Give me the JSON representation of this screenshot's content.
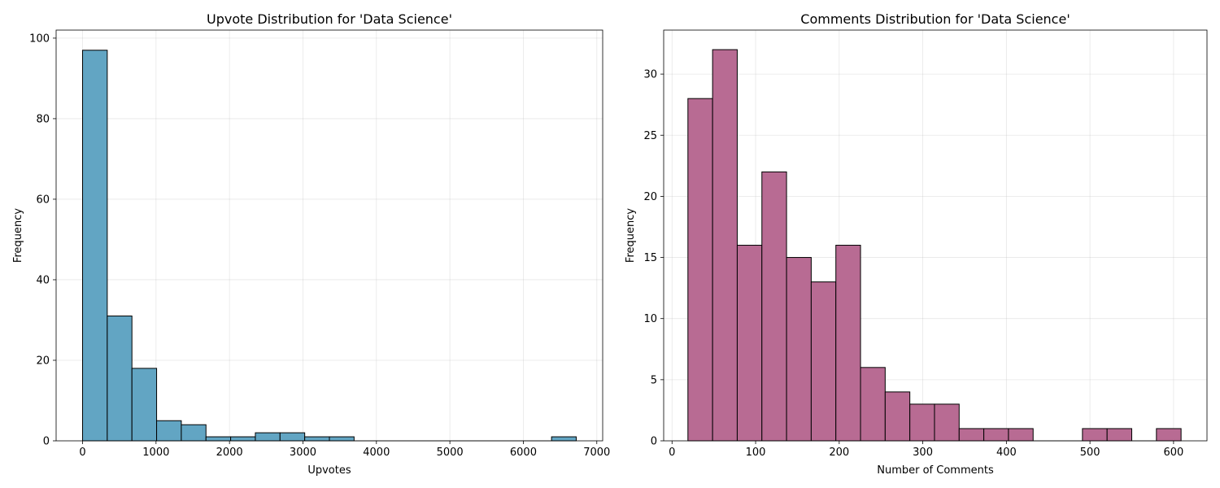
{
  "chart_data": [
    {
      "type": "bar",
      "title": "Upvote Distribution for 'Data Science'",
      "xlabel": "Upvotes",
      "ylabel": "Frequency",
      "xlim": [
        -360,
        7080
      ],
      "ylim": [
        0,
        102
      ],
      "xticks": [
        0,
        1000,
        2000,
        3000,
        4000,
        5000,
        6000,
        7000
      ],
      "yticks": [
        0,
        20,
        40,
        60,
        80,
        100
      ],
      "grid": true,
      "color": "#62A5C3",
      "bins": [
        {
          "x0": 0,
          "x1": 336,
          "count": 97
        },
        {
          "x0": 336,
          "x1": 672,
          "count": 31
        },
        {
          "x0": 672,
          "x1": 1008,
          "count": 18
        },
        {
          "x0": 1008,
          "x1": 1344,
          "count": 5
        },
        {
          "x0": 1344,
          "x1": 1680,
          "count": 4
        },
        {
          "x0": 1680,
          "x1": 2016,
          "count": 1
        },
        {
          "x0": 2016,
          "x1": 2352,
          "count": 1
        },
        {
          "x0": 2352,
          "x1": 2688,
          "count": 2
        },
        {
          "x0": 2688,
          "x1": 3024,
          "count": 2
        },
        {
          "x0": 3024,
          "x1": 3360,
          "count": 1
        },
        {
          "x0": 3360,
          "x1": 3696,
          "count": 1
        },
        {
          "x0": 3696,
          "x1": 4032,
          "count": 0
        },
        {
          "x0": 4032,
          "x1": 4368,
          "count": 0
        },
        {
          "x0": 4368,
          "x1": 4704,
          "count": 0
        },
        {
          "x0": 4704,
          "x1": 5040,
          "count": 0
        },
        {
          "x0": 5040,
          "x1": 5376,
          "count": 0
        },
        {
          "x0": 5376,
          "x1": 5712,
          "count": 0
        },
        {
          "x0": 5712,
          "x1": 6048,
          "count": 0
        },
        {
          "x0": 6048,
          "x1": 6384,
          "count": 0
        },
        {
          "x0": 6384,
          "x1": 6720,
          "count": 1
        }
      ]
    },
    {
      "type": "bar",
      "title": "Comments Distribution for 'Data Science'",
      "xlabel": "Number of Comments",
      "ylabel": "Frequency",
      "xlim": [
        -10,
        640
      ],
      "ylim": [
        0,
        33.6
      ],
      "xticks": [
        0,
        100,
        200,
        300,
        400,
        500,
        600
      ],
      "yticks": [
        0,
        5,
        10,
        15,
        20,
        25,
        30
      ],
      "grid": true,
      "color": "#B86B93",
      "bins": [
        {
          "x0": 19,
          "x1": 48.5,
          "count": 28
        },
        {
          "x0": 48.5,
          "x1": 78,
          "count": 32
        },
        {
          "x0": 78,
          "x1": 107.5,
          "count": 16
        },
        {
          "x0": 107.5,
          "x1": 137,
          "count": 22
        },
        {
          "x0": 137,
          "x1": 166.5,
          "count": 15
        },
        {
          "x0": 166.5,
          "x1": 196,
          "count": 13
        },
        {
          "x0": 196,
          "x1": 225.5,
          "count": 16
        },
        {
          "x0": 225.5,
          "x1": 255,
          "count": 6
        },
        {
          "x0": 255,
          "x1": 284.5,
          "count": 4
        },
        {
          "x0": 284.5,
          "x1": 314,
          "count": 3
        },
        {
          "x0": 314,
          "x1": 343.5,
          "count": 3
        },
        {
          "x0": 343.5,
          "x1": 373,
          "count": 1
        },
        {
          "x0": 373,
          "x1": 402.5,
          "count": 1
        },
        {
          "x0": 402.5,
          "x1": 432,
          "count": 1
        },
        {
          "x0": 432,
          "x1": 461.5,
          "count": 0
        },
        {
          "x0": 461.5,
          "x1": 491,
          "count": 0
        },
        {
          "x0": 491,
          "x1": 520.5,
          "count": 1
        },
        {
          "x0": 520.5,
          "x1": 550,
          "count": 1
        },
        {
          "x0": 550,
          "x1": 579.5,
          "count": 0
        },
        {
          "x0": 579.5,
          "x1": 609,
          "count": 1
        }
      ]
    }
  ]
}
